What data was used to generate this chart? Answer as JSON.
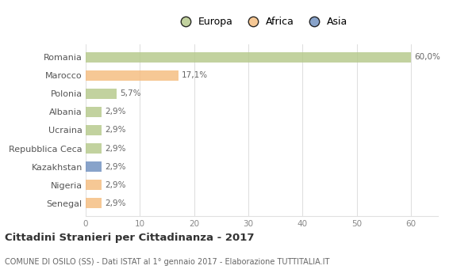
{
  "categories": [
    "Romania",
    "Marocco",
    "Polonia",
    "Albania",
    "Ucraina",
    "Repubblica Ceca",
    "Kazakhstan",
    "Nigeria",
    "Senegal"
  ],
  "values": [
    60.0,
    17.1,
    5.7,
    2.9,
    2.9,
    2.9,
    2.9,
    2.9,
    2.9
  ],
  "labels": [
    "60,0%",
    "17,1%",
    "5,7%",
    "2,9%",
    "2,9%",
    "2,9%",
    "2,9%",
    "2,9%",
    "2,9%"
  ],
  "colors": [
    "#b5c98a",
    "#f5bc7e",
    "#b5c98a",
    "#b5c98a",
    "#b5c98a",
    "#b5c98a",
    "#6e8fbf",
    "#f5bc7e",
    "#f5bc7e"
  ],
  "legend_labels": [
    "Europa",
    "Africa",
    "Asia"
  ],
  "legend_colors": [
    "#b5c98a",
    "#f5bc7e",
    "#6e8fbf"
  ],
  "title": "Cittadini Stranieri per Cittadinanza - 2017",
  "subtitle": "COMUNE DI OSILO (SS) - Dati ISTAT al 1° gennaio 2017 - Elaborazione TUTTITALIA.IT",
  "xlim": [
    0,
    65
  ],
  "xticks": [
    0,
    10,
    20,
    30,
    40,
    50,
    60
  ],
  "background_color": "#ffffff",
  "grid_color": "#e0e0e0"
}
